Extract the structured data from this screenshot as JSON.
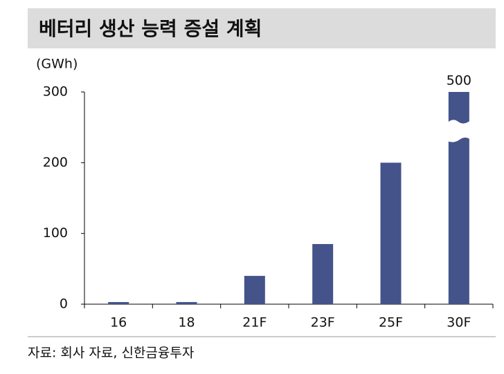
{
  "chart_data": {
    "type": "bar",
    "title": "베터리 생산 능력 증설 계획",
    "y_axis_label": "(GWh)",
    "categories": [
      "16",
      "18",
      "21F",
      "23F",
      "25F",
      "30F"
    ],
    "values": [
      3,
      3,
      40,
      85,
      200,
      500
    ],
    "color": "#44538a",
    "ylim": [
      0,
      300
    ],
    "yticks": [
      0,
      100,
      200,
      300
    ],
    "grid": false,
    "data_labels": [
      5
    ],
    "axis_break": true,
    "source": "자료: 회사 자료, 신한금융투자"
  }
}
